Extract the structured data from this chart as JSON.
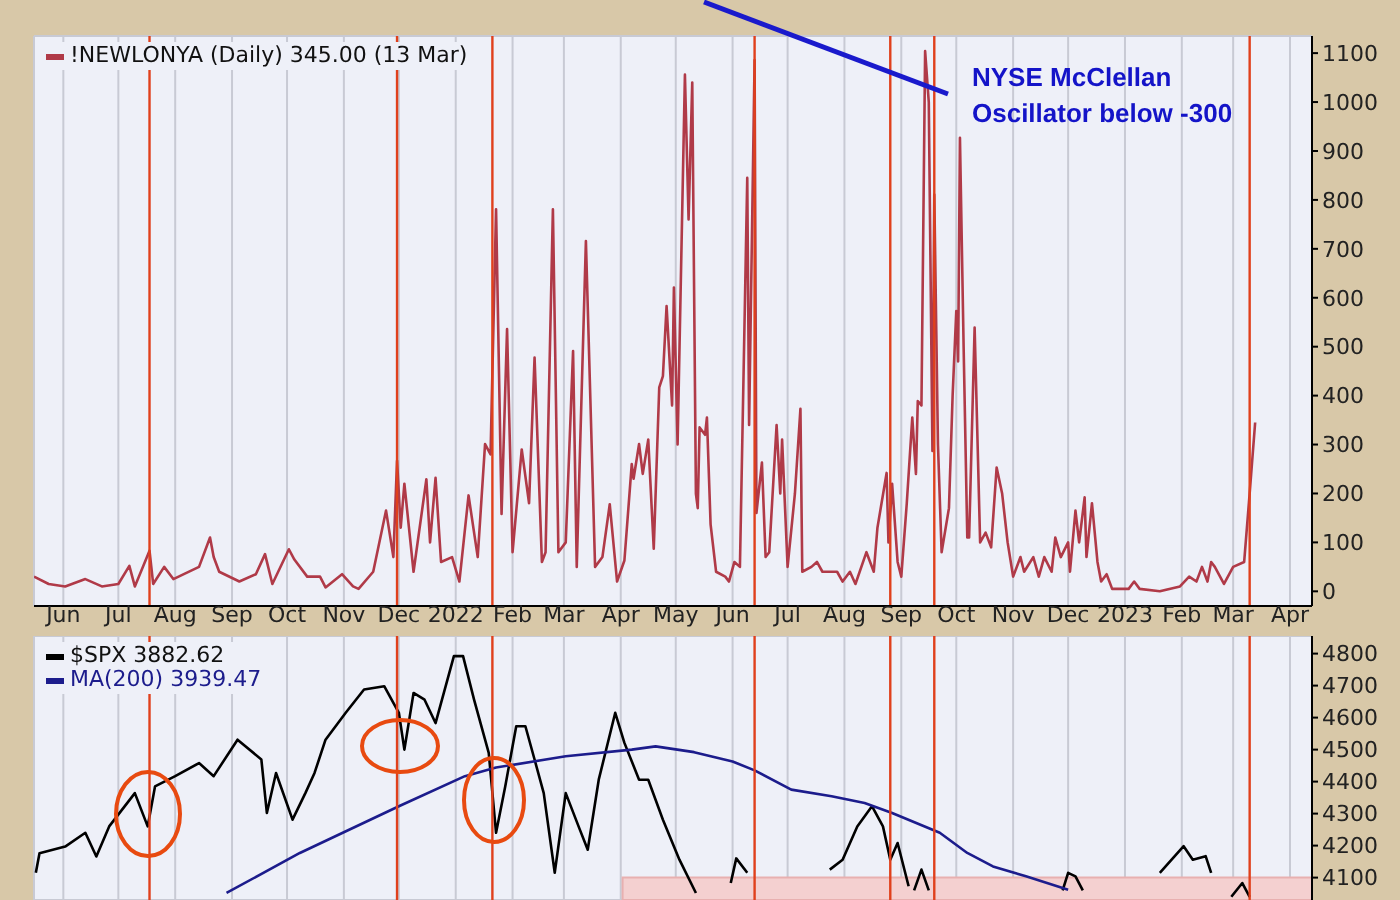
{
  "chart_data": [
    {
      "type": "line",
      "legend": "top left",
      "grid": true,
      "marker": "none",
      "annotations": [
        "NYSE McClellan Oscillator below -300"
      ],
      "xlim": [
        "2021-05-16",
        "2023-04-13"
      ],
      "ylim": [
        -30,
        1135
      ],
      "yticks": [
        0,
        100,
        200,
        300,
        400,
        500,
        600,
        700,
        800,
        900,
        1000,
        1100
      ],
      "xticks": [
        {
          "value": "2021-06-01",
          "label": "Jun"
        },
        {
          "value": "2021-07-01",
          "label": "Jul"
        },
        {
          "value": "2021-08-01",
          "label": "Aug"
        },
        {
          "value": "2021-09-01",
          "label": "Sep"
        },
        {
          "value": "2021-10-01",
          "label": "Oct"
        },
        {
          "value": "2021-11-01",
          "label": "Nov"
        },
        {
          "value": "2021-12-01",
          "label": "Dec"
        },
        {
          "value": "2022-01-01",
          "label": "2022"
        },
        {
          "value": "2022-02-01",
          "label": "Feb"
        },
        {
          "value": "2022-03-01",
          "label": "Mar"
        },
        {
          "value": "2022-04-01",
          "label": "Apr"
        },
        {
          "value": "2022-05-01",
          "label": "May"
        },
        {
          "value": "2022-06-01",
          "label": "Jun"
        },
        {
          "value": "2022-07-01",
          "label": "Jul"
        },
        {
          "value": "2022-08-01",
          "label": "Aug"
        },
        {
          "value": "2022-09-01",
          "label": "Sep"
        },
        {
          "value": "2022-10-01",
          "label": "Oct"
        },
        {
          "value": "2022-11-01",
          "label": "Nov"
        },
        {
          "value": "2022-12-01",
          "label": "Dec"
        },
        {
          "value": "2023-01-01",
          "label": "2023"
        },
        {
          "value": "2023-02-01",
          "label": "Feb"
        },
        {
          "value": "2023-03-01",
          "label": "Mar"
        },
        {
          "value": "2023-04-01",
          "label": "Apr"
        }
      ],
      "ref_lines": [
        {
          "axis": "x",
          "value": "2021-07-18",
          "color": "#e0401c"
        },
        {
          "axis": "x",
          "value": "2021-11-30",
          "color": "#e0401c"
        },
        {
          "axis": "x",
          "value": "2022-01-21",
          "color": "#e0401c"
        },
        {
          "axis": "x",
          "value": "2022-06-13",
          "color": "#e0401c"
        },
        {
          "axis": "x",
          "value": "2022-08-26",
          "color": "#e0401c"
        },
        {
          "axis": "x",
          "value": "2022-09-19",
          "color": "#e0401c"
        },
        {
          "axis": "x",
          "value": "2023-03-10",
          "color": "#e0401c"
        }
      ],
      "series": [
        {
          "name": "!NEWLONYA (Daily) 345.00 (13 Mar)",
          "color": "#b03a48",
          "x": [
            "2021-05-16",
            "2021-05-24",
            "2021-06-02",
            "2021-06-13",
            "2021-06-22",
            "2021-07-01",
            "2021-07-07",
            "2021-07-10",
            "2021-07-18",
            "2021-07-20",
            "2021-07-26",
            "2021-07-31",
            "2021-08-14",
            "2021-08-20",
            "2021-08-22",
            "2021-08-25",
            "2021-09-05",
            "2021-09-14",
            "2021-09-19",
            "2021-09-23",
            "2021-10-02",
            "2021-10-05",
            "2021-10-12",
            "2021-10-19",
            "2021-10-22",
            "2021-10-31",
            "2021-11-06",
            "2021-11-09",
            "2021-11-17",
            "2021-11-24",
            "2021-11-28",
            "2021-11-30",
            "2021-12-02",
            "2021-12-04",
            "2021-12-09",
            "2021-12-16",
            "2021-12-18",
            "2021-12-21",
            "2021-12-24",
            "2021-12-30",
            "2022-01-03",
            "2022-01-08",
            "2022-01-13",
            "2022-01-17",
            "2022-01-20",
            "2022-01-23",
            "2022-01-26",
            "2022-01-29",
            "2022-02-01",
            "2022-02-06",
            "2022-02-10",
            "2022-02-13",
            "2022-02-17",
            "2022-02-19",
            "2022-02-23",
            "2022-02-26",
            "2022-03-02",
            "2022-03-06",
            "2022-03-08",
            "2022-03-13",
            "2022-03-18",
            "2022-03-22",
            "2022-03-26",
            "2022-03-30",
            "2022-04-03",
            "2022-04-07",
            "2022-04-08",
            "2022-04-11",
            "2022-04-13",
            "2022-04-16",
            "2022-04-19",
            "2022-04-22",
            "2022-04-24",
            "2022-04-26",
            "2022-04-29",
            "2022-04-30",
            "2022-05-02",
            "2022-05-06",
            "2022-05-08",
            "2022-05-10",
            "2022-05-12",
            "2022-05-13",
            "2022-05-14",
            "2022-05-17",
            "2022-05-18",
            "2022-05-20",
            "2022-05-23",
            "2022-05-28",
            "2022-05-30",
            "2022-06-02",
            "2022-06-05",
            "2022-06-09",
            "2022-06-10",
            "2022-06-13",
            "2022-06-14",
            "2022-06-17",
            "2022-06-19",
            "2022-06-21",
            "2022-06-25",
            "2022-06-27",
            "2022-06-28",
            "2022-07-01",
            "2022-07-05",
            "2022-07-08",
            "2022-07-09",
            "2022-07-14",
            "2022-07-17",
            "2022-07-20",
            "2022-07-28",
            "2022-07-31",
            "2022-08-04",
            "2022-08-07",
            "2022-08-13",
            "2022-08-17",
            "2022-08-19",
            "2022-08-24",
            "2022-08-25",
            "2022-08-27",
            "2022-08-30",
            "2022-09-01",
            "2022-09-04",
            "2022-09-07",
            "2022-09-09",
            "2022-09-10",
            "2022-09-12",
            "2022-09-14",
            "2022-09-16",
            "2022-09-18",
            "2022-09-19",
            "2022-09-21",
            "2022-09-23",
            "2022-09-27",
            "2022-09-29",
            "2022-10-01",
            "2022-10-02",
            "2022-10-03",
            "2022-10-05",
            "2022-10-07",
            "2022-10-08",
            "2022-10-11",
            "2022-10-14",
            "2022-10-17",
            "2022-10-20",
            "2022-10-23",
            "2022-10-26",
            "2022-10-29",
            "2022-11-01",
            "2022-11-05",
            "2022-11-07",
            "2022-11-12",
            "2022-11-15",
            "2022-11-18",
            "2022-11-22",
            "2022-11-24",
            "2022-11-27",
            "2022-12-01",
            "2022-12-02",
            "2022-12-05",
            "2022-12-07",
            "2022-12-10",
            "2022-12-11",
            "2022-12-14",
            "2022-12-17",
            "2022-12-19",
            "2022-12-22",
            "2022-12-25",
            "2023-01-03",
            "2023-01-06",
            "2023-01-09",
            "2023-01-20",
            "2023-01-31",
            "2023-02-05",
            "2023-02-09",
            "2023-02-12",
            "2023-02-15",
            "2023-02-17",
            "2023-02-19",
            "2023-02-24",
            "2023-03-01",
            "2023-03-07",
            "2023-03-10",
            "2023-03-13"
          ],
          "values": [
            30,
            15,
            10,
            25,
            10,
            15,
            52,
            10,
            83,
            15,
            50,
            25,
            50,
            110,
            70,
            40,
            20,
            35,
            76,
            15,
            86,
            65,
            30,
            30,
            8,
            35,
            10,
            5,
            40,
            165,
            70,
            267,
            130,
            220,
            40,
            229,
            100,
            232,
            60,
            70,
            20,
            196,
            70,
            301,
            280,
            781,
            158,
            536,
            80,
            290,
            180,
            478,
            60,
            80,
            781,
            80,
            100,
            491,
            50,
            716,
            50,
            70,
            178,
            20,
            63,
            260,
            230,
            301,
            240,
            310,
            87,
            417,
            440,
            583,
            380,
            621,
            300,
            1056,
            760,
            1040,
            199,
            170,
            335,
            320,
            355,
            137,
            40,
            30,
            20,
            60,
            50,
            845,
            340,
            1086,
            160,
            263,
            70,
            80,
            340,
            200,
            310,
            50,
            200,
            373,
            40,
            50,
            60,
            40,
            40,
            20,
            40,
            15,
            80,
            40,
            130,
            242,
            100,
            220,
            60,
            30,
            180,
            355,
            240,
            389,
            380,
            1104,
            1000,
            287,
            811,
            300,
            80,
            170,
            400,
            573,
            470,
            927,
            500,
            110,
            110,
            539,
            100,
            120,
            90,
            253,
            200,
            100,
            30,
            70,
            40,
            70,
            30,
            70,
            40,
            110,
            70,
            100,
            40,
            165,
            100,
            192,
            70,
            180,
            60,
            20,
            35,
            5,
            5,
            20,
            5,
            0,
            10,
            30,
            20,
            50,
            20,
            60,
            50,
            15,
            50,
            60,
            200,
            345
          ]
        }
      ]
    },
    {
      "type": "line",
      "legend": "top left",
      "grid": true,
      "marker": "none",
      "tick_labels": "y",
      "xlim": [
        "2021-05-16",
        "2023-04-13"
      ],
      "ylim": [
        4030,
        4855
      ],
      "yticks": [
        4100,
        4200,
        4300,
        4400,
        4500,
        4600,
        4700,
        4800
      ],
      "xticks": [
        {
          "value": "2021-06-01",
          "label": null
        },
        {
          "value": "2021-07-01",
          "label": null
        },
        {
          "value": "2021-08-01",
          "label": null
        },
        {
          "value": "2021-09-01",
          "label": null
        },
        {
          "value": "2021-10-01",
          "label": null
        },
        {
          "value": "2021-11-01",
          "label": null
        },
        {
          "value": "2021-12-01",
          "label": null
        },
        {
          "value": "2022-01-01",
          "label": null
        },
        {
          "value": "2022-02-01",
          "label": null
        },
        {
          "value": "2022-03-01",
          "label": null
        },
        {
          "value": "2022-04-01",
          "label": null
        },
        {
          "value": "2022-05-01",
          "label": null
        },
        {
          "value": "2022-06-01",
          "label": null
        },
        {
          "value": "2022-07-01",
          "label": null
        },
        {
          "value": "2022-08-01",
          "label": null
        },
        {
          "value": "2022-09-01",
          "label": null
        },
        {
          "value": "2022-10-01",
          "label": null
        },
        {
          "value": "2022-11-01",
          "label": null
        },
        {
          "value": "2022-12-01",
          "label": null
        },
        {
          "value": "2023-01-01",
          "label": null
        },
        {
          "value": "2023-02-01",
          "label": null
        },
        {
          "value": "2023-03-01",
          "label": null
        },
        {
          "value": "2023-04-01",
          "label": null
        }
      ],
      "ref_lines": [
        {
          "axis": "x",
          "value": "2021-07-18",
          "color": "#e0401c"
        },
        {
          "axis": "x",
          "value": "2021-11-30",
          "color": "#e0401c"
        },
        {
          "axis": "x",
          "value": "2022-01-21",
          "color": "#e0401c"
        },
        {
          "axis": "x",
          "value": "2022-06-13",
          "color": "#e0401c"
        },
        {
          "axis": "x",
          "value": "2022-08-26",
          "color": "#e0401c"
        },
        {
          "axis": "x",
          "value": "2022-09-19",
          "color": "#e0401c"
        },
        {
          "axis": "x",
          "value": "2023-03-10",
          "color": "#e0401c"
        }
      ],
      "bands": [
        {
          "axis": "x",
          "from": "2022-04-02",
          "to": "2023-04-13",
          "color": "#f4d0d0"
        }
      ],
      "series": [
        {
          "name": "$SPX 3882.62",
          "color": "#000000",
          "x": [
            "2021-05-17",
            "2021-05-19",
            "2021-06-02",
            "2021-06-13",
            "2021-06-19",
            "2021-06-26",
            "2021-07-10",
            "2021-07-17",
            "2021-07-21",
            "2021-08-01",
            "2021-08-14",
            "2021-08-22",
            "2021-09-04",
            "2021-09-17",
            "2021-09-20",
            "2021-09-25",
            "2021-10-04",
            "2021-10-11",
            "2021-10-16",
            "2021-10-22",
            "2021-11-02",
            "2021-11-12",
            "2021-11-23",
            "2021-12-01",
            "2021-12-04",
            "2021-12-09",
            "2021-12-15",
            "2021-12-21",
            "2021-12-31",
            "2022-01-05",
            "2022-01-11",
            "2022-01-19",
            "2022-01-23",
            "2022-01-28",
            "2022-02-03",
            "2022-02-08",
            "2022-02-13",
            "2022-02-18",
            "2022-02-24",
            "2022-03-02",
            "2022-03-09",
            "2022-03-14",
            "2022-03-20",
            "2022-03-29",
            "2022-04-03",
            "2022-04-11",
            "2022-04-16",
            "2022-04-24",
            "2022-05-03",
            "2022-05-12",
            "2022-05-20",
            "2022-05-31",
            "2022-06-03",
            "2022-06-09",
            "2022-06-15",
            "2022-07-24",
            "2022-07-31",
            "2022-08-08",
            "2022-08-16",
            "2022-08-22",
            "2022-08-26",
            "2022-08-30",
            "2022-09-05",
            "2022-09-07",
            "2022-09-08",
            "2022-09-12",
            "2022-09-16",
            "2022-09-18",
            "2022-11-28",
            "2022-12-01",
            "2022-12-05",
            "2022-12-09",
            "2022-12-11",
            "2023-01-20",
            "2023-02-02",
            "2023-02-07",
            "2023-02-14",
            "2023-02-17",
            "2023-02-22",
            "2023-02-28",
            "2023-03-06",
            "2023-03-10"
          ],
          "values": [
            4115,
            4176,
            4197,
            4240,
            4166,
            4260,
            4364,
            4260,
            4385,
            4417,
            4458,
            4417,
            4531,
            4469,
            4302,
            4427,
            4281,
            4364,
            4427,
            4531,
            4615,
            4688,
            4698,
            4615,
            4500,
            4677,
            4656,
            4583,
            4792,
            4792,
            4656,
            4490,
            4240,
            4385,
            4573,
            4573,
            4469,
            4364,
            4115,
            4364,
            4260,
            4187,
            4406,
            4615,
            4521,
            4406,
            4406,
            4281,
            4156,
            4052,
            null,
            4083,
            4160,
            4115,
            null,
            4125,
            4156,
            4260,
            4323,
            4260,
            4156,
            4208,
            4073,
            null,
            4060,
            4125,
            4060,
            null,
            4060,
            4115,
            4104,
            4060,
            null,
            4115,
            4198,
            4156,
            4167,
            4115,
            null,
            4040,
            4083,
            4040
          ]
        },
        {
          "name": "MA(200) 3939.47",
          "color": "#1c1c8c",
          "x": [
            "2021-08-29",
            "2021-10-08",
            "2021-12-01",
            "2022-01-06",
            "2022-01-23",
            "2022-03-02",
            "2022-04-07",
            "2022-04-20",
            "2022-05-11",
            "2022-06-01",
            "2022-06-13",
            "2022-07-03",
            "2022-07-25",
            "2022-08-12",
            "2022-08-27",
            "2022-09-22",
            "2022-10-07",
            "2022-10-21",
            "2022-11-08",
            "2022-12-01"
          ],
          "values": [
            4052,
            4177,
            4323,
            4417,
            4444,
            4479,
            4500,
            4510,
            4492,
            4463,
            4435,
            4375,
            4354,
            4333,
            4302,
            4240,
            4177,
            4135,
            4104,
            4062
          ]
        }
      ]
    }
  ]
}
